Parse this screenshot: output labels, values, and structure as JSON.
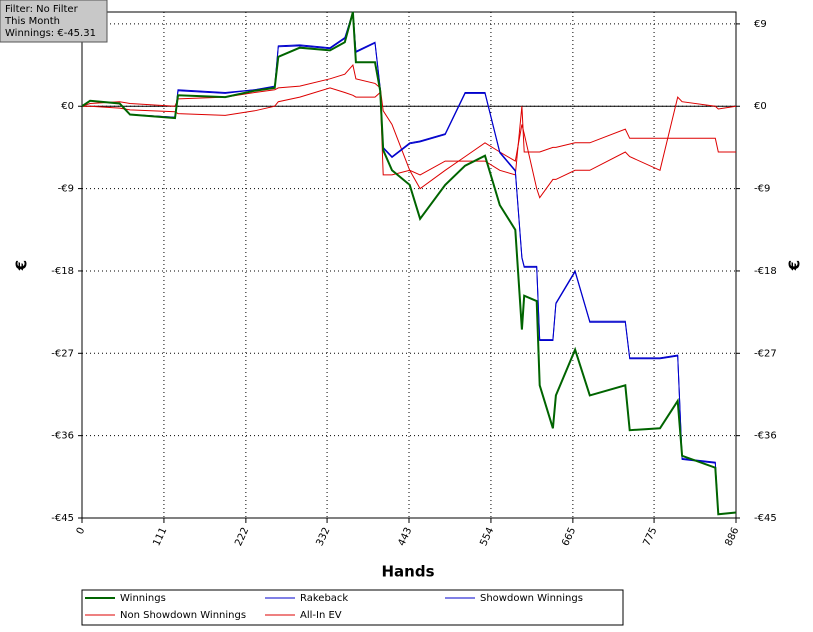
{
  "filter": {
    "lines": [
      "Filter: No Filter",
      "This Month",
      "Winnings: €-45.31"
    ]
  },
  "chart_data": {
    "type": "line",
    "x_label": "Hands",
    "y_label": "€",
    "xlim": [
      0,
      886
    ],
    "xticks": [
      0,
      111,
      222,
      332,
      443,
      554,
      665,
      775,
      886
    ],
    "ylim": [
      -45,
      10.3
    ],
    "yticks": [
      {
        "value": 9,
        "label": "€9"
      },
      {
        "value": 0,
        "label": "€0"
      },
      {
        "value": -9,
        "label": "-€9"
      },
      {
        "value": -18,
        "label": "-€18"
      },
      {
        "value": -27,
        "label": "-€27"
      },
      {
        "value": -36,
        "label": "-€36"
      },
      {
        "value": -45,
        "label": "-€45"
      }
    ],
    "grid": true,
    "x": [
      0,
      11,
      51,
      65,
      126,
      130,
      194,
      234,
      261,
      266,
      295,
      336,
      356,
      367,
      371,
      397,
      404,
      408,
      420,
      444,
      458,
      492,
      519,
      546,
      566,
      587,
      596,
      599,
      616,
      620,
      638,
      642,
      668,
      688,
      736,
      742,
      783,
      807,
      813,
      858,
      862,
      886
    ],
    "series": [
      {
        "name": "Winnings",
        "color": "#006400",
        "width": 2,
        "values": [
          0,
          0.6,
          0.3,
          -0.9,
          -1.3,
          1.2,
          1,
          1.7,
          2,
          5.4,
          6.4,
          6.1,
          7,
          10.3,
          4.8,
          4.8,
          1.7,
          -4.8,
          -7,
          -8.6,
          -12.3,
          -8.6,
          -6.5,
          -5.4,
          -10.8,
          -13.5,
          -24.4,
          -20.7,
          -21.3,
          -30.5,
          -35.2,
          -31.6,
          -26.6,
          -31.6,
          -30.5,
          -35.4,
          -35.2,
          -32.2,
          -38.2,
          -39.5,
          -44.6,
          -44.4
        ]
      },
      {
        "name": "Rakeback",
        "color": "#0000cc",
        "width": 1,
        "values": [
          0,
          0.6,
          0.3,
          -0.9,
          -1.2,
          1.8,
          1.5,
          1.8,
          2.2,
          6.6,
          6.7,
          6.4,
          7.5,
          10.3,
          6,
          7,
          2,
          -4.5,
          -5.5,
          -4,
          -3.8,
          -3,
          1.5,
          1.5,
          -5,
          -7,
          -16.5,
          -17.5,
          -17.5,
          -25.5,
          -25.5,
          -21.5,
          -18,
          -23.5,
          -23.5,
          -27.5,
          -27.5,
          -27.2,
          -38.5,
          -38.9,
          -44.6,
          -44.4
        ]
      },
      {
        "name": "Showdown Winnings",
        "color": "#0000cc",
        "width": 1,
        "values": [
          0,
          0.6,
          0.3,
          -0.9,
          -1.2,
          1.7,
          1.4,
          1.8,
          2.1,
          6.5,
          6.6,
          6.3,
          7.4,
          10.3,
          5.9,
          6.9,
          1.9,
          -4.6,
          -5.6,
          -4.1,
          -3.9,
          -3.1,
          1.4,
          1.4,
          -5.1,
          -7.1,
          -16.6,
          -17.6,
          -17.6,
          -25.6,
          -25.6,
          -21.6,
          -18.1,
          -23.6,
          -23.6,
          -27.6,
          -27.6,
          -27.3,
          -38.6,
          -39,
          -44.6,
          -44.4
        ]
      },
      {
        "name": "Non Showdown Winnings",
        "color": "#dd0000",
        "width": 1,
        "values": [
          0,
          0,
          -0.2,
          -0.4,
          -0.6,
          -0.8,
          -1,
          -0.5,
          0,
          0.5,
          1,
          2,
          1.5,
          1.2,
          1,
          1,
          1.5,
          -7.5,
          -7.5,
          -7,
          -7.5,
          -6,
          -6,
          -6,
          -7,
          -7.5,
          0,
          -5,
          -5,
          -5,
          -4.5,
          -4.5,
          -4,
          -4,
          -2.5,
          -3.5,
          -3.5,
          -3.5,
          -3.5,
          -3.5,
          -5,
          -5
        ]
      },
      {
        "name": "All-In EV",
        "color": "#dd0000",
        "width": 1,
        "values": [
          0,
          0.3,
          0.5,
          0.3,
          0,
          0.8,
          1,
          1.5,
          1.8,
          2,
          2.2,
          3,
          3.5,
          4.5,
          3,
          2.5,
          2,
          -0.5,
          -2,
          -7,
          -9,
          -7,
          -5.5,
          -4,
          -5,
          -6,
          -2,
          -3,
          -9,
          -10,
          -8,
          -8,
          -7,
          -7,
          -5,
          -5.5,
          -7,
          1,
          0.5,
          0,
          -0.3,
          0
        ]
      }
    ]
  }
}
